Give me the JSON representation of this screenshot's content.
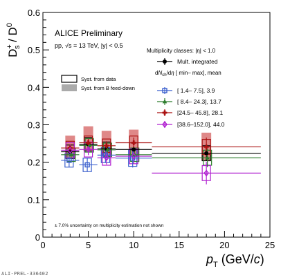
{
  "footer_label": "ALI-PREL-336402",
  "chart_data": {
    "type": "scatter",
    "title": "ALICE Preliminary",
    "subtitle": "pp, √s = 13 TeV, |y| < 0.5",
    "ylabel": "D_s^+ / D^0",
    "xlabel": "p_T (GeV/c)",
    "xlim": [
      0,
      25
    ],
    "ylim": [
      0,
      0.6
    ],
    "xticks": [
      0,
      5,
      10,
      15,
      20,
      25
    ],
    "yticks": [
      0,
      0.1,
      0.2,
      0.3,
      0.4,
      0.5,
      0.6
    ],
    "xtick_labels": [
      "0",
      "5",
      "10",
      "15",
      "20",
      "25"
    ],
    "ytick_labels": [
      "0",
      "0.1",
      "0.2",
      "0.3",
      "0.4",
      "0.5",
      "0.6"
    ],
    "grid": false,
    "legend_syst": {
      "data_label": "Syst. from data",
      "feeddown_label": "Syst. from B feed-down"
    },
    "legend_mult": {
      "header": "Multiplicity classes: |η| < 1.0",
      "column_header": "dN_ch/dη  [ min–  max], mean"
    },
    "footnote": "± 7.0% uncertainty on multiplicity estimation not shown",
    "series": [
      {
        "name": "Mult. integrated",
        "color": "#000000",
        "marker": "circle",
        "points": [
          {
            "x": 3,
            "xlo": 2,
            "xhi": 4,
            "y": 0.228,
            "stat": 0.008,
            "sys": 0.018,
            "fd_up": 0.025,
            "fd_dn": 0.0
          },
          {
            "x": 5,
            "xlo": 4,
            "xhi": 6,
            "y": 0.248,
            "stat": 0.007,
            "sys": 0.018,
            "fd_up": 0.03,
            "fd_dn": 0.0
          },
          {
            "x": 7,
            "xlo": 6,
            "xhi": 8,
            "y": 0.236,
            "stat": 0.008,
            "sys": 0.018,
            "fd_up": 0.03,
            "fd_dn": 0.0
          },
          {
            "x": 10,
            "xlo": 8,
            "xhi": 12,
            "y": 0.234,
            "stat": 0.01,
            "sys": 0.018,
            "fd_up": 0.035,
            "fd_dn": 0.0
          },
          {
            "x": 18,
            "xlo": 12,
            "xhi": 24,
            "y": 0.224,
            "stat": 0.02,
            "sys": 0.02,
            "fd_up": 0.035,
            "fd_dn": 0.0
          }
        ]
      },
      {
        "name": "[ 1.4–   7.5],   3.9",
        "color": "#3a5fcd",
        "marker": "square-open",
        "points": [
          {
            "x": 3,
            "xlo": 2,
            "xhi": 4,
            "y": 0.205,
            "stat": 0.018,
            "sys": 0.018
          },
          {
            "x": 5,
            "xlo": 4,
            "xhi": 6,
            "y": 0.193,
            "stat": 0.018,
            "sys": 0.018
          },
          {
            "x": 7,
            "xlo": 6,
            "xhi": 8,
            "y": 0.219,
            "stat": 0.02,
            "sys": 0.02
          },
          {
            "x": 10,
            "xlo": 8,
            "xhi": 12,
            "y": 0.211,
            "stat": 0.025,
            "sys": 0.022
          }
        ]
      },
      {
        "name": "[ 8.4–  24.3], 13.7",
        "color": "#2e7d2e",
        "marker": "triangle",
        "points": [
          {
            "x": 3,
            "xlo": 2,
            "xhi": 4,
            "y": 0.22,
            "stat": 0.01,
            "sys": 0.018
          },
          {
            "x": 5,
            "xlo": 4,
            "xhi": 6,
            "y": 0.245,
            "stat": 0.01,
            "sys": 0.018
          },
          {
            "x": 7,
            "xlo": 6,
            "xhi": 8,
            "y": 0.233,
            "stat": 0.012,
            "sys": 0.018
          },
          {
            "x": 10,
            "xlo": 8,
            "xhi": 12,
            "y": 0.22,
            "stat": 0.014,
            "sys": 0.018
          },
          {
            "x": 18,
            "xlo": 12,
            "xhi": 24,
            "y": 0.212,
            "stat": 0.025,
            "sys": 0.02
          }
        ]
      },
      {
        "name": "[24.5–  45.8], 28.1",
        "color": "#aa1111",
        "marker": "cross",
        "points": [
          {
            "x": 3,
            "xlo": 2,
            "xhi": 4,
            "y": 0.238,
            "stat": 0.01,
            "sys": 0.018
          },
          {
            "x": 5,
            "xlo": 4,
            "xhi": 6,
            "y": 0.252,
            "stat": 0.01,
            "sys": 0.018
          },
          {
            "x": 7,
            "xlo": 6,
            "xhi": 8,
            "y": 0.244,
            "stat": 0.012,
            "sys": 0.018
          },
          {
            "x": 10,
            "xlo": 8,
            "xhi": 12,
            "y": 0.252,
            "stat": 0.014,
            "sys": 0.018
          },
          {
            "x": 18,
            "xlo": 12,
            "xhi": 24,
            "y": 0.241,
            "stat": 0.025,
            "sys": 0.02
          }
        ]
      },
      {
        "name": "[38.6–152.0], 44.0",
        "color": "#b020d0",
        "marker": "diamond",
        "points": [
          {
            "x": 3,
            "xlo": 2,
            "xhi": 4,
            "y": 0.232,
            "stat": 0.015,
            "sys": 0.02
          },
          {
            "x": 5,
            "xlo": 4,
            "xhi": 6,
            "y": 0.234,
            "stat": 0.015,
            "sys": 0.02
          },
          {
            "x": 7,
            "xlo": 6,
            "xhi": 8,
            "y": 0.212,
            "stat": 0.018,
            "sys": 0.02
          },
          {
            "x": 10,
            "xlo": 8,
            "xhi": 12,
            "y": 0.216,
            "stat": 0.02,
            "sys": 0.02
          },
          {
            "x": 18,
            "xlo": 12,
            "xhi": 24,
            "y": 0.171,
            "stat": 0.03,
            "sys": 0.02
          }
        ]
      }
    ]
  }
}
